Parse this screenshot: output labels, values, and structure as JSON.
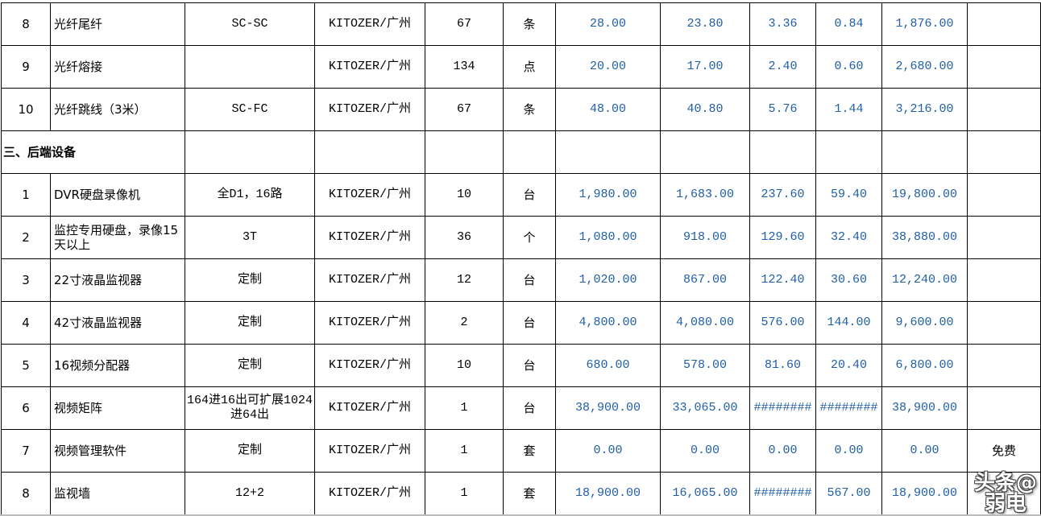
{
  "colors": {
    "number_text": "#1f5fa8",
    "grid": "#000000"
  },
  "rows": [
    {
      "type": "item",
      "no": "8",
      "name": "光纤尾纤",
      "spec": "SC-SC",
      "brand": "KITOZER/广州",
      "qty": "67",
      "unit": "条",
      "price": "28.00",
      "price2": "23.80",
      "v3": "3.36",
      "v4": "0.84",
      "total": "1,876.00",
      "note": ""
    },
    {
      "type": "item",
      "no": "9",
      "name": "光纤熔接",
      "spec": "",
      "brand": "KITOZER/广州",
      "qty": "134",
      "unit": "点",
      "price": "20.00",
      "price2": "17.00",
      "v3": "2.40",
      "v4": "0.60",
      "total": "2,680.00",
      "note": ""
    },
    {
      "type": "item",
      "no": "10",
      "name": "光纤跳线（3米）",
      "spec": "SC-FC",
      "brand": "KITOZER/广州",
      "qty": "67",
      "unit": "条",
      "price": "48.00",
      "price2": "40.80",
      "v3": "5.76",
      "v4": "1.44",
      "total": "3,216.00",
      "note": ""
    },
    {
      "type": "section",
      "name": "三、后端设备"
    },
    {
      "type": "item",
      "no": "1",
      "name": "DVR硬盘录像机",
      "spec": "全D1，16路",
      "brand": "KITOZER/广州",
      "qty": "10",
      "unit": "台",
      "price": "1,980.00",
      "price2": "1,683.00",
      "v3": "237.60",
      "v4": "59.40",
      "total": "19,800.00",
      "note": ""
    },
    {
      "type": "item",
      "no": "2",
      "name": "监控专用硬盘，录像15天以上",
      "spec": "3T",
      "brand": "KITOZER/广州",
      "qty": "36",
      "unit": "个",
      "price": "1,080.00",
      "price2": "918.00",
      "v3": "129.60",
      "v4": "32.40",
      "total": "38,880.00",
      "note": ""
    },
    {
      "type": "item",
      "no": "3",
      "name": "22寸液晶监视器",
      "spec": "定制",
      "brand": "KITOZER/广州",
      "qty": "12",
      "unit": "台",
      "price": "1,020.00",
      "price2": "867.00",
      "v3": "122.40",
      "v4": "30.60",
      "total": "12,240.00",
      "note": ""
    },
    {
      "type": "item",
      "no": "4",
      "name": "42寸液晶监视器",
      "spec": "定制",
      "brand": "KITOZER/广州",
      "qty": "2",
      "unit": "台",
      "price": "4,800.00",
      "price2": "4,080.00",
      "v3": "576.00",
      "v4": "144.00",
      "total": "9,600.00",
      "note": ""
    },
    {
      "type": "item",
      "no": "5",
      "name": "16视频分配器",
      "spec": "定制",
      "brand": "KITOZER/广州",
      "qty": "10",
      "unit": "台",
      "price": "680.00",
      "price2": "578.00",
      "v3": "81.60",
      "v4": "20.40",
      "total": "6,800.00",
      "note": ""
    },
    {
      "type": "item",
      "no": "6",
      "name": "视频矩阵",
      "spec": "164进16出可扩展1024进64出",
      "brand": "KITOZER/广州",
      "qty": "1",
      "unit": "台",
      "price": "38,900.00",
      "price2": "33,065.00",
      "v3": "########",
      "v4": "########",
      "total": "38,900.00",
      "note": ""
    },
    {
      "type": "item",
      "no": "7",
      "name": "视频管理软件",
      "spec": "定制",
      "brand": "KITOZER/广州",
      "qty": "1",
      "unit": "套",
      "price": "0.00",
      "price2": "0.00",
      "v3": "0.00",
      "v4": "0.00",
      "total": "0.00",
      "note": "免费"
    },
    {
      "type": "item",
      "no": "8",
      "name": "监视墙",
      "spec": "12+2",
      "brand": "KITOZER/广州",
      "qty": "1",
      "unit": "套",
      "price": "18,900.00",
      "price2": "16,065.00",
      "v3": "########",
      "v4": "567.00",
      "total": "18,900.00",
      "note": ""
    }
  ],
  "watermark": "头条@弱电"
}
